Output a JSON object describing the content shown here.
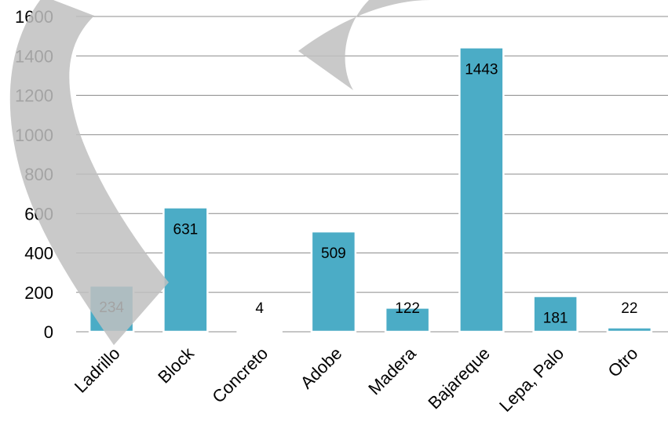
{
  "chart_data": {
    "type": "bar",
    "categories": [
      "Ladrillo",
      "Block",
      "Concreto",
      "Adobe",
      "Madera",
      "Bajareque",
      "Lepa, Palo",
      "Otro"
    ],
    "values": [
      234,
      631,
      4,
      509,
      122,
      1443,
      181,
      22
    ],
    "data_labels": [
      "234",
      "631",
      "4",
      "509",
      "122",
      "1443",
      "181",
      "22"
    ],
    "yticks": [
      "0",
      "200",
      "400",
      "600",
      "800",
      "1000",
      "1200",
      "1400",
      "1600"
    ],
    "ylim": [
      0,
      1600
    ],
    "grid": true,
    "legend": "none",
    "title": "",
    "xlabel": "",
    "ylabel": "",
    "bar_color": "#4bacc6",
    "watermark_color": "#bfbfbf"
  }
}
